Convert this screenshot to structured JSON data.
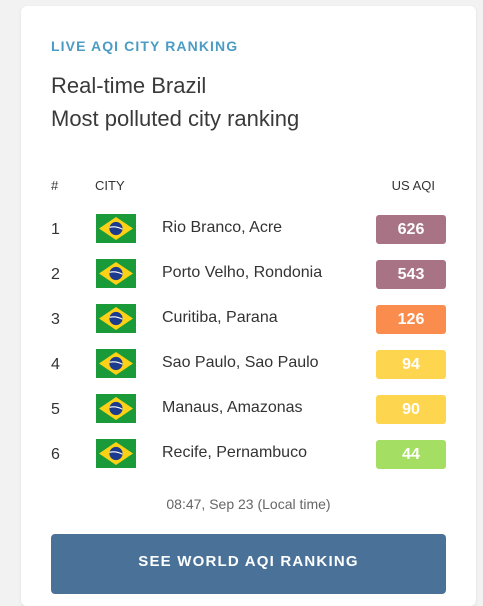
{
  "header": {
    "eyebrow": "LIVE AQI CITY RANKING",
    "title_line1": "Real-time Brazil",
    "title_line2": "Most polluted city ranking"
  },
  "table": {
    "columns": {
      "rank": "#",
      "city": "CITY",
      "aqi": "US AQI"
    },
    "rows": [
      {
        "rank": "1",
        "flag": "brazil-flag-icon",
        "city": "Rio Branco, Acre",
        "aqi": "626",
        "color": "#a87384"
      },
      {
        "rank": "2",
        "flag": "brazil-flag-icon",
        "city": "Porto Velho, Rondonia",
        "aqi": "543",
        "color": "#a87384"
      },
      {
        "rank": "3",
        "flag": "brazil-flag-icon",
        "city": "Curitiba, Parana",
        "aqi": "126",
        "color": "#fa8c4e"
      },
      {
        "rank": "4",
        "flag": "brazil-flag-icon",
        "city": "Sao Paulo, Sao Paulo",
        "aqi": "94",
        "color": "#fdd54e"
      },
      {
        "rank": "5",
        "flag": "brazil-flag-icon",
        "city": "Manaus, Amazonas",
        "aqi": "90",
        "color": "#fdd54e"
      },
      {
        "rank": "6",
        "flag": "brazil-flag-icon",
        "city": "Recife, Pernambuco",
        "aqi": "44",
        "color": "#a4de63"
      }
    ]
  },
  "footer": {
    "timestamp": "08:47, Sep 23 (Local time)",
    "cta_label": "SEE WORLD AQI RANKING"
  },
  "colors": {
    "accent": "#4b9cc3",
    "button": "#4a7299"
  }
}
